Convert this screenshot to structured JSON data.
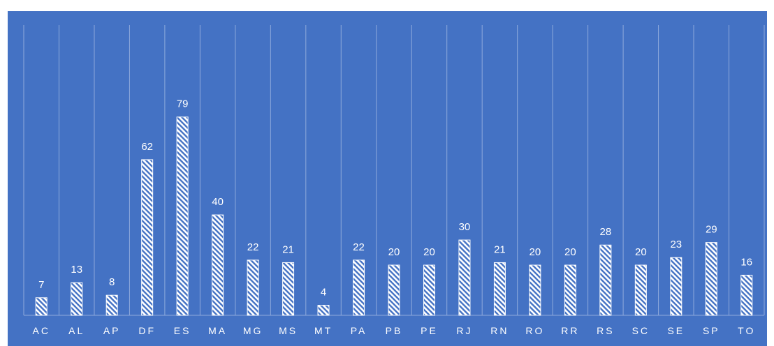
{
  "chart_data": {
    "type": "bar",
    "categories": [
      "AC",
      "AL",
      "AP",
      "DF",
      "ES",
      "MA",
      "MG",
      "MS",
      "MT",
      "PA",
      "PB",
      "PE",
      "RJ",
      "RN",
      "RO",
      "RR",
      "RS",
      "SC",
      "SE",
      "SP",
      "TO"
    ],
    "values": [
      7,
      13,
      8,
      62,
      79,
      40,
      22,
      21,
      4,
      22,
      20,
      20,
      30,
      21,
      20,
      20,
      28,
      20,
      23,
      29,
      16
    ],
    "title": "",
    "xlabel": "",
    "ylabel": "",
    "ylim": [
      0,
      100
    ],
    "grid": "vertical category separators",
    "legend": "none",
    "bar_pattern": "diagonal hatch",
    "colors": {
      "background": "#4472C4",
      "bar": "#ffffff",
      "gridline": "#8FAADC",
      "text": "#ffffff"
    }
  }
}
